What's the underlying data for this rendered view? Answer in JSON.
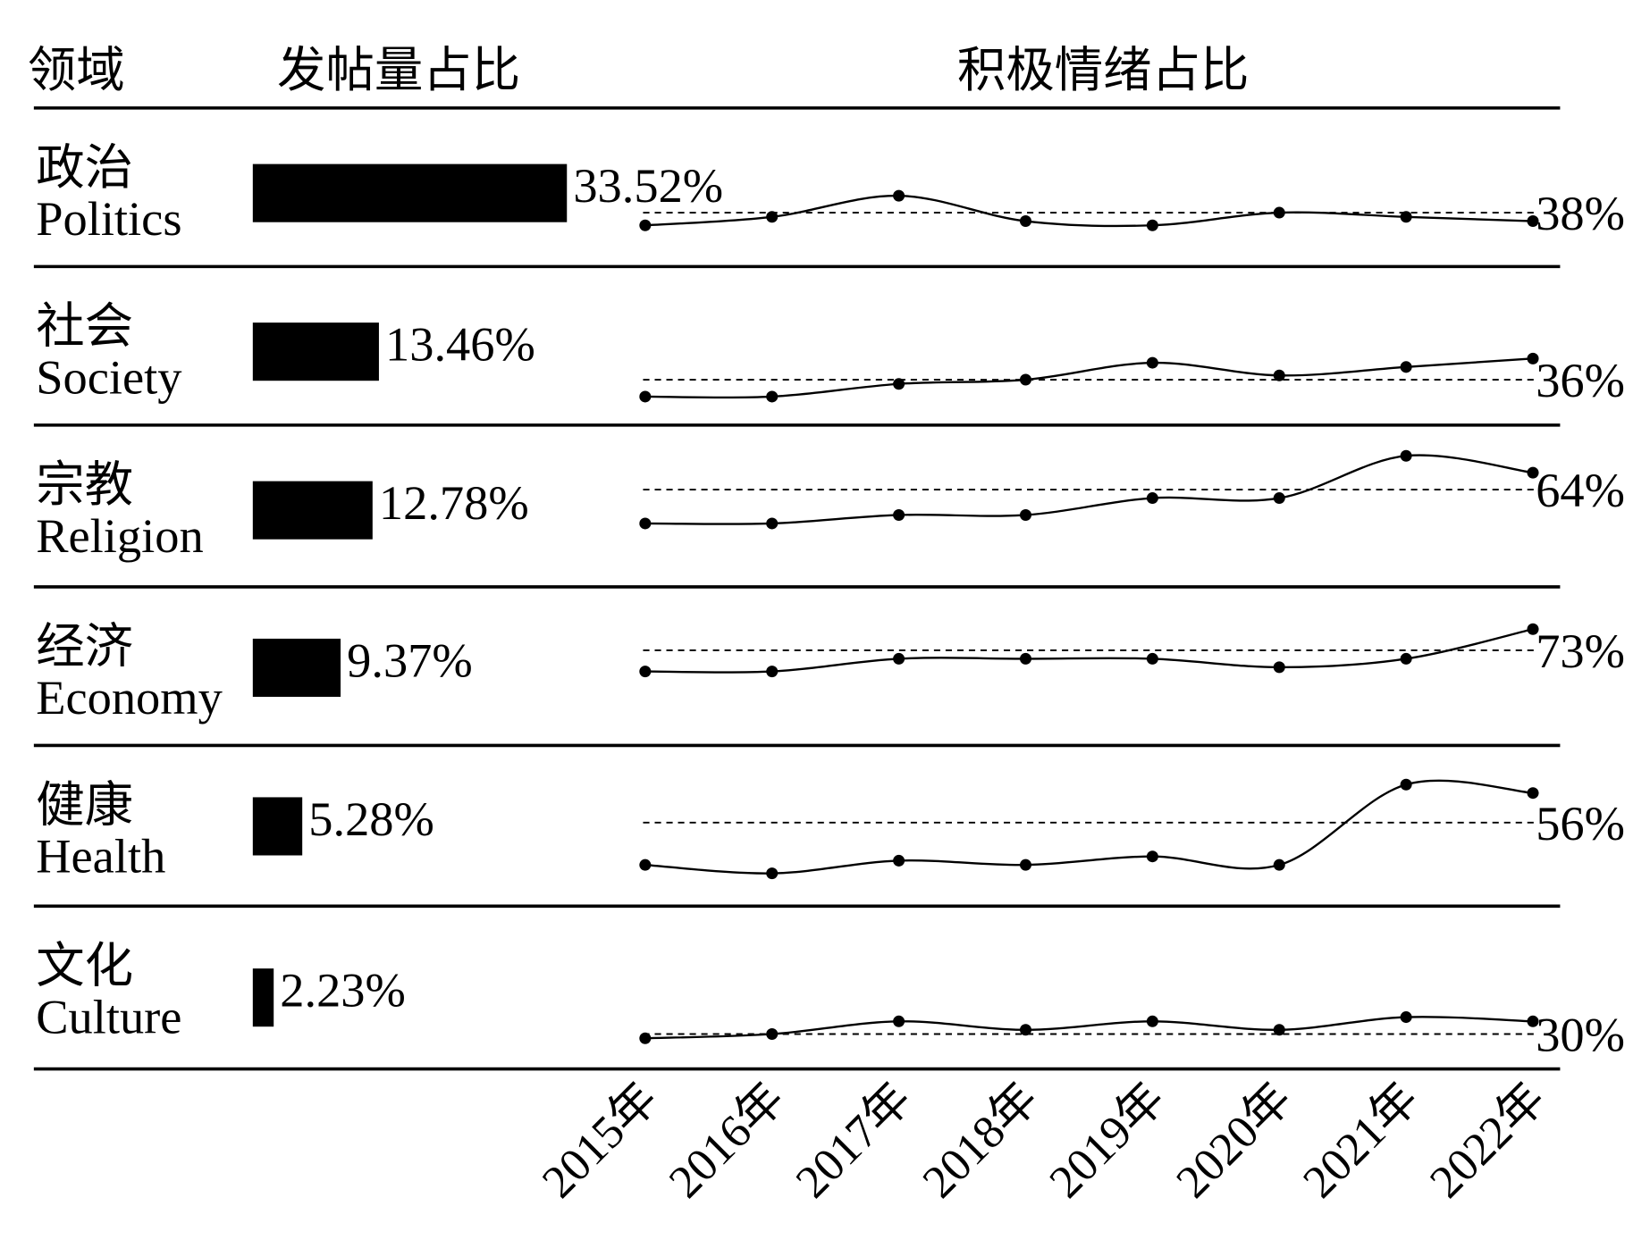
{
  "chart_data": {
    "type": "bar-sparkline",
    "headers": [
      "领域",
      "发帖量占比",
      "积极情绪占比"
    ],
    "x": [
      "2015年",
      "2016年",
      "2017年",
      "2018年",
      "2019年",
      "2020年",
      "2021年",
      "2022年"
    ],
    "rows": [
      {
        "name": "政治",
        "name_en": "Politics",
        "share": 33.52,
        "share_label": "33.52%",
        "positive": 38,
        "positive_label": "38%",
        "trend": [
          35,
          37,
          42,
          36,
          35,
          38,
          37,
          36
        ]
      },
      {
        "name": "社会",
        "name_en": "Society",
        "share": 13.46,
        "share_label": "13.46%",
        "positive": 36,
        "positive_label": "36%",
        "trend": [
          32,
          32,
          35,
          36,
          40,
          37,
          39,
          41
        ]
      },
      {
        "name": "宗教",
        "name_en": "Religion",
        "share": 12.78,
        "share_label": "12.78%",
        "positive": 64,
        "positive_label": "64%",
        "trend": [
          56,
          56,
          58,
          58,
          62,
          62,
          72,
          68
        ]
      },
      {
        "name": "经济",
        "name_en": "Economy",
        "share": 9.37,
        "share_label": "9.37%",
        "positive": 73,
        "positive_label": "73%",
        "trend": [
          68,
          68,
          71,
          71,
          71,
          69,
          71,
          78
        ]
      },
      {
        "name": "健康",
        "name_en": "Health",
        "share": 5.28,
        "share_label": "5.28%",
        "positive": 56,
        "positive_label": "56%",
        "trend": [
          46,
          44,
          47,
          46,
          48,
          46,
          65,
          63
        ]
      },
      {
        "name": "文化",
        "name_en": "Culture",
        "share": 2.23,
        "share_label": "2.23%",
        "positive": 30,
        "positive_label": "30%",
        "trend": [
          29,
          30,
          33,
          31,
          33,
          31,
          34,
          33
        ]
      }
    ]
  }
}
